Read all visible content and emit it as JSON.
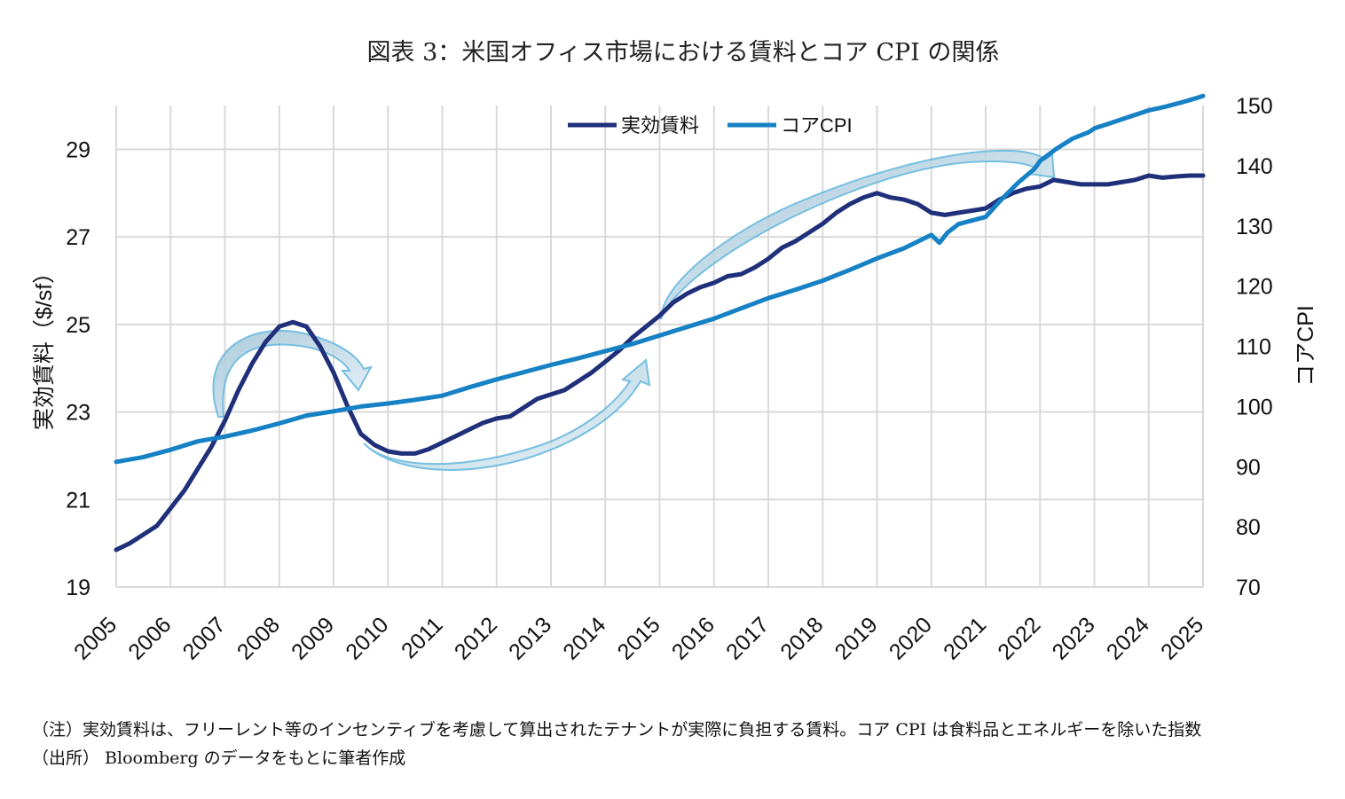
{
  "chart_data": {
    "type": "line",
    "title": "図表 3：米国オフィス市場における賃料とコア CPI の関係",
    "ylabel_left": "実効賃料（$/sf）",
    "ylabel_right": "コアCPI",
    "ylim_left": [
      19,
      30
    ],
    "ylim_right": [
      70,
      150
    ],
    "yticks_left": [
      "19",
      "21",
      "23",
      "25",
      "27",
      "29"
    ],
    "yticks_right": [
      "70",
      "80",
      "90",
      "100",
      "110",
      "120",
      "130",
      "140",
      "150"
    ],
    "x_categories": [
      "2005",
      "2006",
      "2007",
      "2008",
      "2009",
      "2010",
      "2011",
      "2012",
      "2013",
      "2014",
      "2015",
      "2016",
      "2017",
      "2018",
      "2019",
      "2020",
      "2021",
      "2022",
      "2023",
      "2024",
      "2025"
    ],
    "grid": true,
    "legend_position": "top-center",
    "series": [
      {
        "name": "実効賃料",
        "axis": "left",
        "color": "#1f2f7a",
        "x": [
          2005.0,
          2005.25,
          2005.5,
          2005.75,
          2006.0,
          2006.25,
          2006.5,
          2006.75,
          2007.0,
          2007.25,
          2007.5,
          2007.75,
          2008.0,
          2008.25,
          2008.5,
          2008.75,
          2009.0,
          2009.25,
          2009.5,
          2009.75,
          2010.0,
          2010.25,
          2010.5,
          2010.75,
          2011.0,
          2011.25,
          2011.5,
          2011.75,
          2012.0,
          2012.25,
          2012.5,
          2012.75,
          2013.0,
          2013.25,
          2013.5,
          2013.75,
          2014.0,
          2014.25,
          2014.5,
          2014.75,
          2015.0,
          2015.25,
          2015.5,
          2015.75,
          2016.0,
          2016.25,
          2016.5,
          2016.75,
          2017.0,
          2017.25,
          2017.5,
          2017.75,
          2018.0,
          2018.25,
          2018.5,
          2018.75,
          2019.0,
          2019.25,
          2019.5,
          2019.75,
          2020.0,
          2020.25,
          2020.5,
          2020.75,
          2021.0,
          2021.25,
          2021.5,
          2021.75,
          2022.0,
          2022.25,
          2022.5,
          2022.75,
          2023.0,
          2023.25,
          2023.5,
          2023.75,
          2024.0,
          2024.25,
          2024.5,
          2024.75,
          2025.0
        ],
        "values": [
          19.85,
          20.0,
          20.2,
          20.4,
          20.8,
          21.2,
          21.7,
          22.2,
          22.8,
          23.5,
          24.1,
          24.6,
          24.95,
          25.05,
          24.95,
          24.5,
          23.9,
          23.15,
          22.5,
          22.25,
          22.1,
          22.05,
          22.05,
          22.15,
          22.3,
          22.45,
          22.6,
          22.75,
          22.85,
          22.9,
          23.1,
          23.3,
          23.4,
          23.5,
          23.7,
          23.9,
          24.15,
          24.4,
          24.7,
          24.95,
          25.2,
          25.5,
          25.7,
          25.85,
          25.95,
          26.1,
          26.15,
          26.3,
          26.5,
          26.75,
          26.9,
          27.1,
          27.3,
          27.55,
          27.75,
          27.9,
          28.0,
          27.9,
          27.85,
          27.75,
          27.55,
          27.5,
          27.55,
          27.6,
          27.65,
          27.85,
          28.0,
          28.1,
          28.15,
          28.3,
          28.25,
          28.2,
          28.2,
          28.2,
          28.25,
          28.3,
          28.4,
          28.35,
          28.38,
          28.4,
          28.4
        ]
      },
      {
        "name": "コアCPI",
        "axis": "right",
        "color": "#1681c4",
        "x": [
          2005.0,
          2005.5,
          2006.0,
          2006.5,
          2007.0,
          2007.5,
          2008.0,
          2008.5,
          2009.0,
          2009.5,
          2010.0,
          2010.5,
          2011.0,
          2011.5,
          2012.0,
          2012.5,
          2013.0,
          2013.5,
          2014.0,
          2014.5,
          2015.0,
          2015.5,
          2016.0,
          2016.5,
          2017.0,
          2017.5,
          2018.0,
          2018.5,
          2019.0,
          2019.5,
          2020.0,
          2020.15,
          2020.3,
          2020.5,
          2021.0,
          2021.3,
          2021.6,
          2021.9,
          2022.0,
          2022.3,
          2022.6,
          2022.9,
          2023.0,
          2023.3,
          2023.6,
          2023.9,
          2024.0,
          2024.3,
          2024.6,
          2024.9,
          2025.0
        ],
        "values": [
          90.8,
          91.6,
          92.8,
          94.2,
          95.0,
          96.0,
          97.2,
          98.5,
          99.2,
          100.0,
          100.5,
          101.1,
          101.8,
          103.2,
          104.5,
          105.7,
          106.9,
          108.0,
          109.2,
          110.4,
          111.8,
          113.2,
          114.6,
          116.3,
          118.0,
          119.4,
          120.9,
          122.7,
          124.6,
          126.3,
          128.5,
          127.2,
          128.9,
          130.3,
          131.5,
          134.5,
          137.2,
          139.5,
          140.8,
          142.8,
          144.5,
          145.6,
          146.2,
          147.1,
          148.0,
          148.9,
          149.2,
          149.8,
          150.5,
          151.3,
          151.6
        ]
      }
    ]
  },
  "notes": {
    "line1": "（注）実効賃料は、フリーレント等のインセンティブを考慮して算出されたテナントが実際に負担する賃料。コア CPI は食料品とエネルギーを除いた指数",
    "line2": "（出所） Bloomberg のデータをもとに筆者作成"
  }
}
